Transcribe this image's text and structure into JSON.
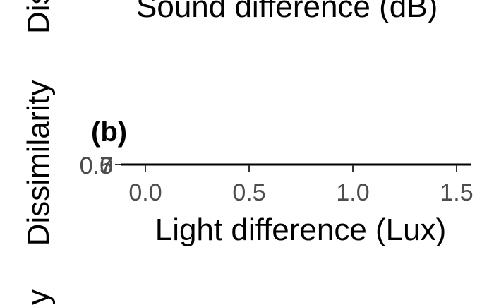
{
  "top_panel": {
    "xlabel": "Sound difference (dB)",
    "ylabel_fragment": "Dis"
  },
  "bottom_panel": {
    "ylabel_fragment": "y"
  },
  "chart_data": {
    "type": "scatter",
    "panel_label": "(b)",
    "xlabel": "Light difference (Lux)",
    "ylabel": "Dissimilarity",
    "x_ticks": [
      "0.0",
      "0.5",
      "1.0",
      "1.5"
    ],
    "y_ticks": [
      "0.0",
      "0.5",
      "0.7"
    ],
    "xlim": [
      -0.1,
      1.55
    ],
    "grid": false,
    "series": []
  }
}
